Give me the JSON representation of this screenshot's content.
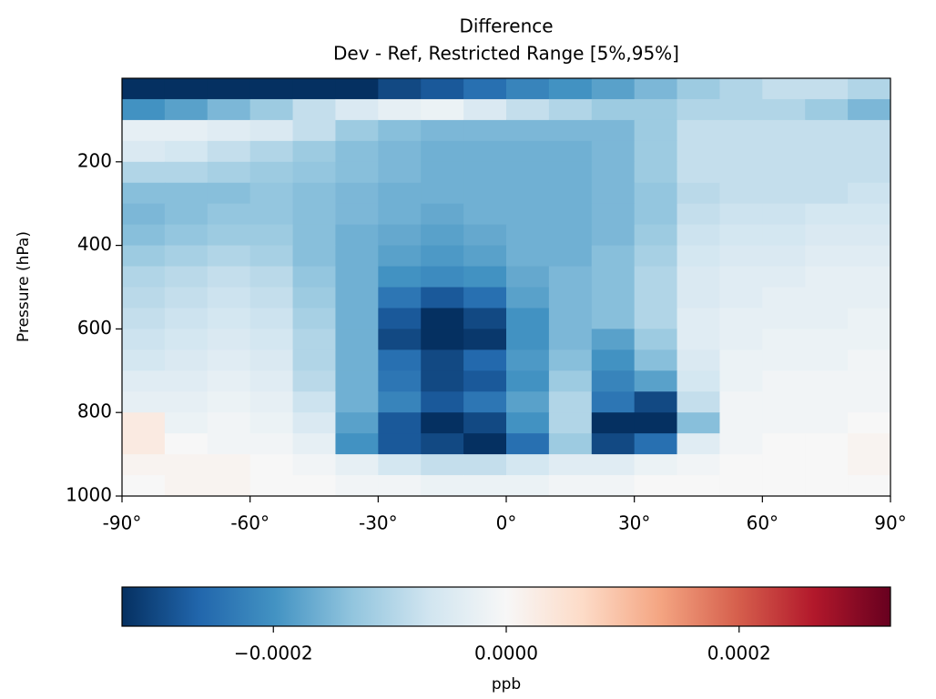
{
  "chart_data": {
    "type": "heatmap",
    "title": "Difference",
    "subtitle": "Dev - Ref, Restricted Range [5%,95%]",
    "y_label": "Pressure (hPa)",
    "colorbar_label": "ppb",
    "colormap": "RdBu_r",
    "x": [
      -85,
      -75,
      -65,
      -55,
      -45,
      -35,
      -25,
      -15,
      -5,
      5,
      15,
      25,
      35,
      45,
      55,
      65,
      75,
      85
    ],
    "y": [
      25,
      75,
      125,
      175,
      225,
      275,
      325,
      375,
      425,
      475,
      525,
      575,
      625,
      675,
      725,
      775,
      825,
      875,
      925,
      975
    ],
    "xlim": [
      -90,
      90
    ],
    "ylim": [
      1000,
      0
    ],
    "xticks": [
      {
        "value": -90,
        "label": "-90°"
      },
      {
        "value": -60,
        "label": "-60°"
      },
      {
        "value": -30,
        "label": "-30°"
      },
      {
        "value": 0,
        "label": "0°"
      },
      {
        "value": 30,
        "label": "30°"
      },
      {
        "value": 60,
        "label": "60°"
      },
      {
        "value": 90,
        "label": "90°"
      }
    ],
    "yticks": [
      200,
      400,
      600,
      800,
      1000
    ],
    "clim": [
      -0.00033,
      0.00033
    ],
    "cticks": [
      {
        "value": -0.0002,
        "label": "−0.0002"
      },
      {
        "value": 0,
        "label": "0.0000"
      },
      {
        "value": 0.0002,
        "label": "0.0002"
      }
    ],
    "values": [
      [
        -0.00033,
        -0.00033,
        -0.00033,
        -0.00033,
        -0.00033,
        -0.00033,
        -0.0003,
        -0.00028,
        -0.00025,
        -0.00022,
        -0.0002,
        -0.00018,
        -0.00015,
        -0.00012,
        -0.0001,
        -8e-05,
        -8e-05,
        -0.0001
      ],
      [
        -0.0002,
        -0.00018,
        -0.00015,
        -0.00012,
        -8e-05,
        -5e-05,
        -3e-05,
        -2e-05,
        -5e-05,
        -8e-05,
        -0.0001,
        -0.00012,
        -0.00012,
        -0.0001,
        -0.0001,
        -0.0001,
        -0.00012,
        -0.00015
      ],
      [
        -3e-05,
        -3e-05,
        -4e-05,
        -5e-05,
        -8e-05,
        -0.00012,
        -0.00014,
        -0.00015,
        -0.00015,
        -0.00015,
        -0.00015,
        -0.00015,
        -0.00012,
        -8e-05,
        -8e-05,
        -8e-05,
        -8e-05,
        -8e-05
      ],
      [
        -5e-05,
        -6e-05,
        -8e-05,
        -0.0001,
        -0.00012,
        -0.00014,
        -0.00015,
        -0.00016,
        -0.00016,
        -0.00016,
        -0.00016,
        -0.00015,
        -0.00012,
        -8e-05,
        -8e-05,
        -8e-05,
        -8e-05,
        -8e-05
      ],
      [
        -0.0001,
        -0.0001,
        -0.00011,
        -0.00012,
        -0.00013,
        -0.00014,
        -0.00015,
        -0.00016,
        -0.00016,
        -0.00016,
        -0.00016,
        -0.00015,
        -0.00012,
        -8e-05,
        -8e-05,
        -8e-05,
        -8e-05,
        -8e-05
      ],
      [
        -0.00014,
        -0.00014,
        -0.00014,
        -0.00013,
        -0.00014,
        -0.00015,
        -0.00016,
        -0.00016,
        -0.00016,
        -0.00016,
        -0.00016,
        -0.00015,
        -0.00013,
        -9e-05,
        -8e-05,
        -8e-05,
        -8e-05,
        -7e-05
      ],
      [
        -0.00015,
        -0.00014,
        -0.00013,
        -0.00013,
        -0.00014,
        -0.00015,
        -0.00016,
        -0.00017,
        -0.00016,
        -0.00016,
        -0.00016,
        -0.00015,
        -0.00013,
        -8e-05,
        -7e-05,
        -7e-05,
        -6e-05,
        -6e-05
      ],
      [
        -0.00014,
        -0.00013,
        -0.00012,
        -0.00012,
        -0.00014,
        -0.00016,
        -0.00017,
        -0.00018,
        -0.00017,
        -0.00016,
        -0.00016,
        -0.00015,
        -0.00012,
        -7e-05,
        -6e-05,
        -6e-05,
        -5e-05,
        -5e-05
      ],
      [
        -0.00012,
        -0.00011,
        -0.0001,
        -0.00011,
        -0.00014,
        -0.00016,
        -0.00018,
        -0.00019,
        -0.00018,
        -0.00016,
        -0.00016,
        -0.00014,
        -0.00011,
        -6e-05,
        -5e-05,
        -5e-05,
        -4e-05,
        -4e-05
      ],
      [
        -0.0001,
        -9e-05,
        -8e-05,
        -9e-05,
        -0.00013,
        -0.00016,
        -0.0002,
        -0.00021,
        -0.0002,
        -0.00017,
        -0.00015,
        -0.00014,
        -0.0001,
        -5e-05,
        -4e-05,
        -4e-05,
        -3e-05,
        -3e-05
      ],
      [
        -9e-05,
        -8e-05,
        -7e-05,
        -8e-05,
        -0.00012,
        -0.00016,
        -0.00024,
        -0.00028,
        -0.00025,
        -0.00018,
        -0.00015,
        -0.00014,
        -0.0001,
        -5e-05,
        -4e-05,
        -3e-05,
        -3e-05,
        -3e-05
      ],
      [
        -8e-05,
        -7e-05,
        -6e-05,
        -7e-05,
        -0.00011,
        -0.00016,
        -0.00028,
        -0.00033,
        -0.0003,
        -0.0002,
        -0.00015,
        -0.00014,
        -0.0001,
        -4e-05,
        -3e-05,
        -3e-05,
        -3e-05,
        -2e-05
      ],
      [
        -7e-05,
        -6e-05,
        -5e-05,
        -6e-05,
        -0.0001,
        -0.00016,
        -0.0003,
        -0.00033,
        -0.00032,
        -0.0002,
        -0.00015,
        -0.00018,
        -0.00012,
        -4e-05,
        -3e-05,
        -2e-05,
        -2e-05,
        -2e-05
      ],
      [
        -6e-05,
        -5e-05,
        -4e-05,
        -5e-05,
        -0.0001,
        -0.00016,
        -0.00025,
        -0.0003,
        -0.00026,
        -0.00019,
        -0.00014,
        -0.0002,
        -0.00014,
        -5e-05,
        -2e-05,
        -2e-05,
        -2e-05,
        -1e-05
      ],
      [
        -4e-05,
        -4e-05,
        -3e-05,
        -4e-05,
        -9e-05,
        -0.00016,
        -0.00024,
        -0.0003,
        -0.00028,
        -0.0002,
        -0.00012,
        -0.00022,
        -0.00018,
        -6e-05,
        -2e-05,
        -1e-05,
        -1e-05,
        -1e-05
      ],
      [
        -3e-05,
        -3e-05,
        -2e-05,
        -3e-05,
        -7e-05,
        -0.00016,
        -0.00022,
        -0.00028,
        -0.00024,
        -0.00018,
        -0.0001,
        -0.00024,
        -0.0003,
        -8e-05,
        -1e-05,
        -1e-05,
        -1e-05,
        -1e-05
      ],
      [
        3e-05,
        -2e-05,
        -1e-05,
        -2e-05,
        -5e-05,
        -0.00018,
        -0.00028,
        -0.00033,
        -0.0003,
        -0.0002,
        -0.0001,
        -0.00033,
        -0.00033,
        -0.00014,
        -1e-05,
        -1e-05,
        -1e-05,
        0
      ],
      [
        3e-05,
        0,
        -1e-05,
        -1e-05,
        -3e-05,
        -0.0002,
        -0.00028,
        -0.0003,
        -0.00033,
        -0.00025,
        -0.00012,
        -0.0003,
        -0.00025,
        -4e-05,
        -1e-05,
        0,
        0,
        1e-05
      ],
      [
        1e-05,
        1e-05,
        1e-05,
        0,
        -1e-05,
        -3e-05,
        -6e-05,
        -8e-05,
        -8e-05,
        -6e-05,
        -4e-05,
        -4e-05,
        -2e-05,
        -1e-05,
        0,
        0,
        0,
        1e-05
      ],
      [
        0,
        1e-05,
        1e-05,
        0,
        0,
        -1e-05,
        -1e-05,
        -2e-05,
        -2e-05,
        -2e-05,
        -1e-05,
        -1e-05,
        0,
        0,
        0,
        0,
        0,
        0
      ]
    ]
  }
}
